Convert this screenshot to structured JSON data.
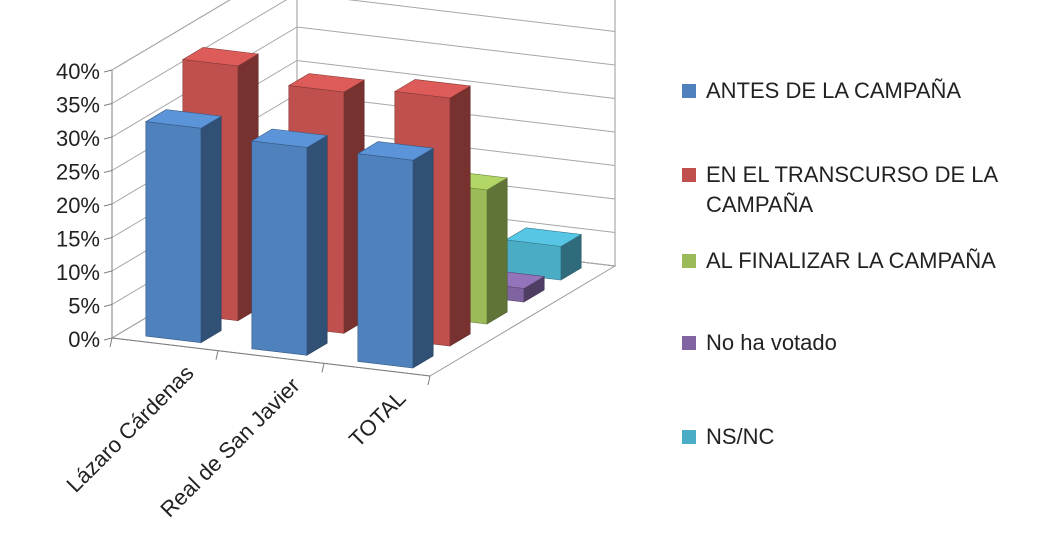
{
  "chart_data": {
    "type": "bar",
    "categories": [
      "Lázaro Cárdenas",
      "Real de San Javier",
      "TOTAL"
    ],
    "series": [
      {
        "name": "ANTES DE LA CAMPAÑA",
        "values": [
          32,
          31,
          31
        ],
        "color": "#4f81bd"
      },
      {
        "name": "EN EL TRANSCURSO DE LA CAMPAÑA",
        "values": [
          38,
          36,
          37
        ],
        "color": "#c0504d"
      },
      {
        "name": "AL FINALIZAR LA CAMPAÑA",
        "values": [
          19,
          20,
          20
        ],
        "color": "#9bbb59"
      },
      {
        "name": "No ha votado",
        "values": [
          0,
          0,
          2
        ],
        "color": "#8064a2"
      },
      {
        "name": "NS/NC",
        "values": [
          0,
          0,
          5
        ],
        "color": "#4bacc6"
      }
    ],
    "y_tick_labels": [
      "0%",
      "5%",
      "10%",
      "15%",
      "20%",
      "25%",
      "30%",
      "35%",
      "40%"
    ],
    "ylim": [
      0,
      40
    ],
    "y_unit": "%",
    "grid": true,
    "legend_position": "right",
    "projection": "3d-column"
  }
}
